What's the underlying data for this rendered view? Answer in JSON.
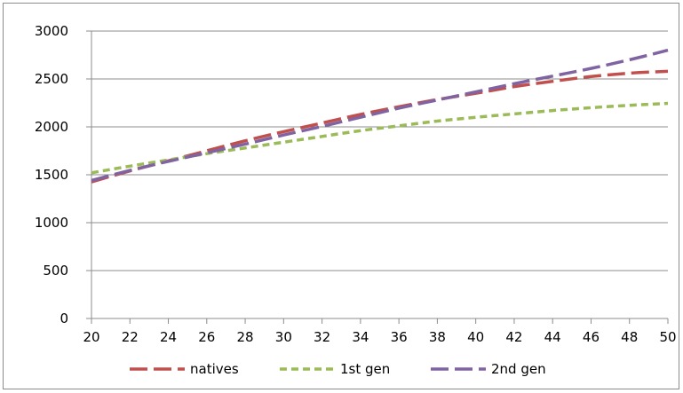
{
  "chart_data": {
    "type": "line",
    "title": "",
    "xlabel": "",
    "ylabel": "",
    "xlim": [
      20,
      50
    ],
    "ylim": [
      0,
      3000
    ],
    "x_ticks": [
      "20",
      "22",
      "24",
      "26",
      "28",
      "30",
      "32",
      "34",
      "36",
      "38",
      "40",
      "42",
      "44",
      "46",
      "48",
      "50"
    ],
    "y_ticks": [
      "0",
      "500",
      "1000",
      "1500",
      "2000",
      "2500",
      "3000"
    ],
    "grid": "horizontal",
    "legend_position": "bottom",
    "x": [
      20,
      22,
      24,
      26,
      28,
      30,
      32,
      34,
      36,
      38,
      40,
      42,
      44,
      46,
      48,
      50
    ],
    "series": [
      {
        "name": "natives",
        "color": "#c0504d",
        "dash": "long-dash",
        "values": [
          1425,
          1540,
          1645,
          1750,
          1855,
          1950,
          2040,
          2130,
          2210,
          2285,
          2350,
          2420,
          2475,
          2525,
          2560,
          2580
        ]
      },
      {
        "name": "1st gen",
        "color": "#9bbb59",
        "dash": "short-dash",
        "values": [
          1520,
          1590,
          1655,
          1720,
          1780,
          1840,
          1900,
          1960,
          2010,
          2060,
          2100,
          2135,
          2170,
          2200,
          2225,
          2245
        ]
      },
      {
        "name": "2nd gen",
        "color": "#8064a2",
        "dash": "long-dash",
        "values": [
          1440,
          1545,
          1640,
          1730,
          1820,
          1915,
          2005,
          2100,
          2195,
          2280,
          2365,
          2450,
          2530,
          2610,
          2700,
          2800
        ]
      }
    ]
  }
}
